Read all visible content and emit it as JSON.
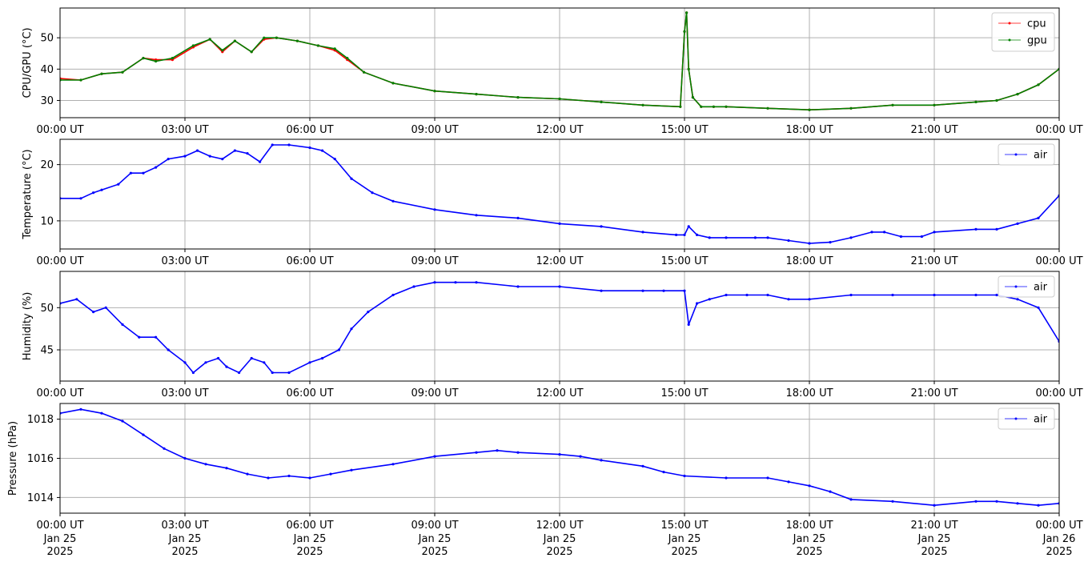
{
  "chart_data": [
    {
      "type": "line",
      "ylabel": "CPU/GPU (°C)",
      "x_ticks": [
        "00:00 UT",
        "03:00 UT",
        "06:00 UT",
        "09:00 UT",
        "12:00 UT",
        "15:00 UT",
        "18:00 UT",
        "21:00 UT",
        "00:00 UT"
      ],
      "y_ticks": [
        30,
        40,
        50
      ],
      "xlim": [
        0,
        24
      ],
      "ylim": [
        24.5,
        59.5
      ],
      "legend": "top-right",
      "series": [
        {
          "name": "cpu",
          "color": "#ff0000",
          "x": [
            0,
            0.5,
            1,
            1.5,
            2,
            2.3,
            2.7,
            3.2,
            3.6,
            3.9,
            4.2,
            4.6,
            4.9,
            5.2,
            5.7,
            6.2,
            6.6,
            6.9,
            7.3,
            8,
            9,
            10,
            11,
            12,
            13,
            14,
            14.9,
            15.0,
            15.05,
            15.1,
            15.2,
            15.4,
            15.7,
            16,
            17,
            18,
            19,
            20,
            21,
            22,
            22.5,
            23,
            23.5,
            24
          ],
          "y": [
            37,
            36.5,
            38.5,
            39,
            43.5,
            43,
            43,
            47,
            49.5,
            45.5,
            49,
            45.5,
            49.5,
            50,
            49,
            47.5,
            46,
            43,
            39,
            35.5,
            33,
            32,
            31,
            30.5,
            29.5,
            28.5,
            28,
            52,
            58,
            40,
            31,
            28,
            28,
            28,
            27.5,
            27,
            27.5,
            28.5,
            28.5,
            29.5,
            30,
            32,
            35,
            40
          ]
        },
        {
          "name": "gpu",
          "color": "#008000",
          "x": [
            0,
            0.5,
            1,
            1.5,
            2,
            2.3,
            2.7,
            3.2,
            3.6,
            3.9,
            4.2,
            4.6,
            4.9,
            5.2,
            5.7,
            6.2,
            6.6,
            6.9,
            7.3,
            8,
            9,
            10,
            11,
            12,
            13,
            14,
            14.9,
            15.0,
            15.05,
            15.1,
            15.2,
            15.4,
            15.7,
            16,
            17,
            18,
            19,
            20,
            21,
            22,
            22.5,
            23,
            23.5,
            24
          ],
          "y": [
            36.5,
            36.5,
            38.5,
            39,
            43.5,
            42.5,
            43.5,
            47.5,
            49.5,
            46,
            49,
            45.5,
            50,
            50,
            49,
            47.5,
            46.5,
            43.5,
            39,
            35.5,
            33,
            32,
            31,
            30.5,
            29.5,
            28.5,
            28,
            52,
            58,
            40,
            31,
            28,
            28,
            28,
            27.5,
            27,
            27.5,
            28.5,
            28.5,
            29.5,
            30,
            32,
            35,
            40
          ]
        }
      ]
    },
    {
      "type": "line",
      "ylabel": "Temperature (°C)",
      "x_ticks": [
        "00:00 UT",
        "03:00 UT",
        "06:00 UT",
        "09:00 UT",
        "12:00 UT",
        "15:00 UT",
        "18:00 UT",
        "21:00 UT",
        "00:00 UT"
      ],
      "y_ticks": [
        10,
        20
      ],
      "xlim": [
        0,
        24
      ],
      "ylim": [
        5,
        24.5
      ],
      "legend": "top-right",
      "series": [
        {
          "name": "air",
          "color": "#0000ff",
          "x": [
            0,
            0.5,
            0.8,
            1,
            1.4,
            1.7,
            2,
            2.3,
            2.6,
            3,
            3.3,
            3.6,
            3.9,
            4.2,
            4.5,
            4.8,
            5.1,
            5.5,
            6,
            6.3,
            6.6,
            7,
            7.5,
            8,
            9,
            10,
            11,
            12,
            13,
            14,
            14.8,
            15,
            15.1,
            15.3,
            15.6,
            16,
            16.7,
            17,
            17.5,
            18,
            18.5,
            19,
            19.5,
            19.8,
            20.2,
            20.7,
            21,
            22,
            22.5,
            23,
            23.5,
            24
          ],
          "y": [
            14,
            14,
            15,
            15.5,
            16.5,
            18.5,
            18.5,
            19.5,
            21,
            21.5,
            22.5,
            21.5,
            21,
            22.5,
            22,
            20.5,
            23.5,
            23.5,
            23,
            22.5,
            21,
            17.5,
            15,
            13.5,
            12,
            11,
            10.5,
            9.5,
            9,
            8,
            7.5,
            7.5,
            9,
            7.5,
            7,
            7,
            7,
            7,
            6.5,
            6,
            6.2,
            7,
            8,
            8,
            7.2,
            7.2,
            8,
            8.5,
            8.5,
            9.5,
            10.5,
            14.5
          ]
        }
      ]
    },
    {
      "type": "line",
      "ylabel": "Humidity (%)",
      "x_ticks": [
        "00:00 UT",
        "03:00 UT",
        "06:00 UT",
        "09:00 UT",
        "12:00 UT",
        "15:00 UT",
        "18:00 UT",
        "21:00 UT",
        "00:00 UT"
      ],
      "y_ticks": [
        45,
        50
      ],
      "xlim": [
        0,
        24
      ],
      "ylim": [
        41.3,
        54.3
      ],
      "legend": "top-right",
      "series": [
        {
          "name": "air",
          "color": "#0000ff",
          "x": [
            0,
            0.4,
            0.8,
            1.1,
            1.5,
            1.9,
            2.3,
            2.6,
            3,
            3.2,
            3.5,
            3.8,
            4,
            4.3,
            4.6,
            4.9,
            5.1,
            5.5,
            6,
            6.3,
            6.7,
            7,
            7.4,
            8,
            8.5,
            9,
            9.5,
            10,
            11,
            12,
            13,
            14,
            14.5,
            15,
            15.1,
            15.3,
            15.6,
            16,
            16.5,
            17,
            17.5,
            18,
            19,
            20,
            21,
            22,
            22.5,
            23,
            23.5,
            24
          ],
          "y": [
            50.5,
            51,
            49.5,
            50,
            48,
            46.5,
            46.5,
            45,
            43.5,
            42.3,
            43.5,
            44,
            43,
            42.3,
            44,
            43.5,
            42.3,
            42.3,
            43.5,
            44,
            45,
            47.5,
            49.5,
            51.5,
            52.5,
            53,
            53,
            53,
            52.5,
            52.5,
            52,
            52,
            52,
            52,
            48,
            50.5,
            51,
            51.5,
            51.5,
            51.5,
            51,
            51,
            51.5,
            51.5,
            51.5,
            51.5,
            51.5,
            51,
            50,
            46
          ]
        }
      ]
    },
    {
      "type": "line",
      "ylabel": "Pressure (hPa)",
      "x_ticks": [
        "00:00 UT",
        "03:00 UT",
        "06:00 UT",
        "09:00 UT",
        "12:00 UT",
        "15:00 UT",
        "18:00 UT",
        "21:00 UT",
        "00:00 UT"
      ],
      "x_dates": [
        "Jan 25\n2025",
        "Jan 25\n2025",
        "Jan 25\n2025",
        "Jan 25\n2025",
        "Jan 25\n2025",
        "Jan 25\n2025",
        "Jan 25\n2025",
        "Jan 25\n2025",
        "Jan 26\n2025"
      ],
      "y_ticks": [
        1014,
        1016,
        1018
      ],
      "xlim": [
        0,
        24
      ],
      "ylim": [
        1013.2,
        1018.8
      ],
      "legend": "top-right",
      "series": [
        {
          "name": "air",
          "color": "#0000ff",
          "x": [
            0,
            0.5,
            1,
            1.5,
            2,
            2.5,
            3,
            3.5,
            4,
            4.5,
            5,
            5.5,
            6,
            6.5,
            7,
            8,
            9,
            10,
            10.5,
            11,
            12,
            12.5,
            13,
            14,
            14.5,
            15,
            16,
            17,
            17.5,
            18,
            18.5,
            19,
            20,
            21,
            22,
            22.5,
            23,
            23.5,
            24
          ],
          "y": [
            1018.3,
            1018.5,
            1018.3,
            1017.9,
            1017.2,
            1016.5,
            1016,
            1015.7,
            1015.5,
            1015.2,
            1015,
            1015.1,
            1015,
            1015.2,
            1015.4,
            1015.7,
            1016.1,
            1016.3,
            1016.4,
            1016.3,
            1016.2,
            1016.1,
            1015.9,
            1015.6,
            1015.3,
            1015.1,
            1015,
            1015,
            1014.8,
            1014.6,
            1014.3,
            1013.9,
            1013.8,
            1013.6,
            1013.8,
            1013.8,
            1013.7,
            1013.6,
            1013.7
          ]
        }
      ]
    }
  ]
}
